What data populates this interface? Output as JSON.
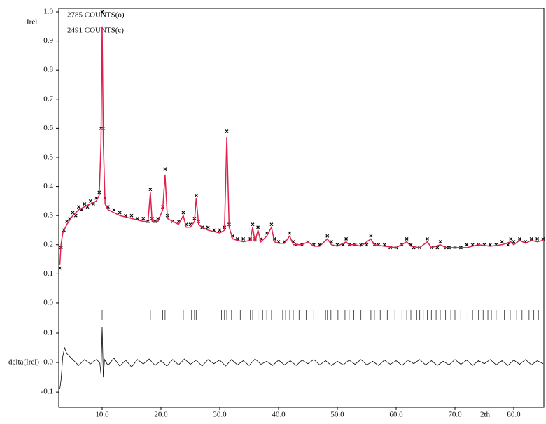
{
  "chart_data": [
    {
      "type": "rietveld",
      "ylabel": "Irel",
      "annotations": [
        "2785 COUNTS(o)",
        "2491 COUNTS(c)"
      ],
      "ylim": [
        -0.065,
        1.012
      ],
      "yticks": [
        {
          "value": 0,
          "label": "0.0"
        },
        0.1,
        0.2,
        0.3,
        0.4,
        0.5,
        0.6,
        0.7,
        0.8,
        0.9,
        {
          "value": 1,
          "label": "1.0"
        }
      ],
      "series": [
        {
          "color": "#000000",
          "marker": "x",
          "x": [
            2.8,
            3,
            3.5,
            4,
            4.5,
            5,
            5.5,
            6,
            6.5,
            7,
            7.5,
            8,
            8.5,
            9,
            9.5,
            9.8,
            10,
            10.2,
            10.5,
            11,
            12,
            13,
            14,
            15,
            16,
            17,
            17.8,
            18.2,
            18.5,
            19,
            19.5,
            20.3,
            20.7,
            21.1,
            22,
            23,
            23.8,
            24.3,
            25,
            25.7,
            26,
            26.4,
            27,
            28,
            29,
            30,
            30.8,
            31.2,
            31.6,
            32.2,
            33,
            34,
            35.2,
            35.6,
            36,
            36.5,
            37,
            38,
            38.8,
            39.3,
            40,
            41,
            41.9,
            42.5,
            43,
            44,
            45,
            46,
            47,
            48.3,
            49,
            50,
            51,
            51.5,
            52,
            53,
            54,
            55,
            55.7,
            56.3,
            57,
            58,
            59,
            60,
            61,
            61.8,
            62.5,
            63,
            64,
            65.3,
            66,
            67,
            67.5,
            68.5,
            69,
            70,
            71,
            72,
            73,
            74,
            75,
            76,
            77,
            78,
            79,
            79.5,
            80,
            81,
            82,
            83,
            84,
            85
          ],
          "values": [
            0.12,
            0.19,
            0.25,
            0.28,
            0.29,
            0.31,
            0.3,
            0.33,
            0.32,
            0.34,
            0.33,
            0.35,
            0.34,
            0.36,
            0.38,
            0.6,
            1.0,
            0.6,
            0.36,
            0.33,
            0.32,
            0.31,
            0.3,
            0.3,
            0.29,
            0.29,
            0.28,
            0.39,
            0.29,
            0.28,
            0.29,
            0.33,
            0.46,
            0.3,
            0.28,
            0.28,
            0.31,
            0.27,
            0.27,
            0.29,
            0.37,
            0.28,
            0.26,
            0.26,
            0.25,
            0.25,
            0.26,
            0.59,
            0.27,
            0.23,
            0.22,
            0.22,
            0.22,
            0.27,
            0.22,
            0.26,
            0.22,
            0.24,
            0.27,
            0.22,
            0.21,
            0.21,
            0.24,
            0.21,
            0.2,
            0.2,
            0.21,
            0.2,
            0.2,
            0.23,
            0.21,
            0.2,
            0.2,
            0.22,
            0.2,
            0.2,
            0.2,
            0.2,
            0.23,
            0.2,
            0.2,
            0.2,
            0.19,
            0.19,
            0.2,
            0.22,
            0.2,
            0.19,
            0.19,
            0.22,
            0.19,
            0.19,
            0.21,
            0.19,
            0.19,
            0.19,
            0.19,
            0.2,
            0.2,
            0.2,
            0.2,
            0.2,
            0.2,
            0.21,
            0.2,
            0.22,
            0.21,
            0.22,
            0.21,
            0.22,
            0.22,
            0.22
          ]
        },
        {
          "color": "#e0204a",
          "line": true,
          "x": [
            2.8,
            3,
            3.3,
            4,
            5,
            6,
            7,
            8,
            9,
            9.5,
            9.8,
            10,
            10.2,
            10.5,
            11,
            12,
            13,
            14,
            15,
            16,
            17,
            17.8,
            18.2,
            18.5,
            19.5,
            20.3,
            20.7,
            21.1,
            22,
            23,
            23.8,
            24.3,
            25,
            25.7,
            26,
            26.4,
            27,
            28,
            29,
            30,
            30.8,
            31.2,
            31.6,
            32.2,
            33,
            34,
            35.2,
            35.6,
            36,
            36.5,
            37,
            38,
            38.8,
            39.3,
            40,
            41,
            41.9,
            42.5,
            44,
            45,
            46,
            47,
            48.3,
            49,
            50,
            51.5,
            52,
            53,
            54,
            55.7,
            56.3,
            58,
            60,
            61.8,
            62.5,
            64,
            65.3,
            66,
            67.5,
            68.5,
            70,
            72,
            74,
            76,
            78,
            79.5,
            80,
            81,
            82,
            83,
            84,
            85
          ],
          "values": [
            0.13,
            0.2,
            0.24,
            0.27,
            0.3,
            0.32,
            0.33,
            0.34,
            0.35,
            0.37,
            0.55,
            0.95,
            0.55,
            0.34,
            0.32,
            0.31,
            0.3,
            0.295,
            0.29,
            0.285,
            0.28,
            0.28,
            0.38,
            0.28,
            0.28,
            0.32,
            0.44,
            0.29,
            0.28,
            0.27,
            0.3,
            0.26,
            0.26,
            0.28,
            0.36,
            0.27,
            0.26,
            0.25,
            0.245,
            0.24,
            0.25,
            0.57,
            0.26,
            0.22,
            0.215,
            0.21,
            0.215,
            0.26,
            0.21,
            0.25,
            0.21,
            0.23,
            0.26,
            0.21,
            0.205,
            0.205,
            0.23,
            0.2,
            0.2,
            0.21,
            0.195,
            0.195,
            0.22,
            0.2,
            0.195,
            0.21,
            0.2,
            0.2,
            0.195,
            0.22,
            0.2,
            0.195,
            0.19,
            0.21,
            0.195,
            0.19,
            0.21,
            0.19,
            0.2,
            0.19,
            0.19,
            0.19,
            0.2,
            0.195,
            0.2,
            0.21,
            0.2,
            0.215,
            0.205,
            0.215,
            0.21,
            0.215
          ]
        }
      ],
      "reflections": [
        10.0,
        18.2,
        20.3,
        20.7,
        23.8,
        25.2,
        25.7,
        26.0,
        30.3,
        30.8,
        31.2,
        32.0,
        33.5,
        35.2,
        35.6,
        36.5,
        37.3,
        38.0,
        38.8,
        40.7,
        41.2,
        41.9,
        42.5,
        43.5,
        44.7,
        46.0,
        48.0,
        48.3,
        48.9,
        50.1,
        51.3,
        52.0,
        52.8,
        54.0,
        55.7,
        56.3,
        57.3,
        58.5,
        59.8,
        61.0,
        61.8,
        62.5,
        63.5,
        64.0,
        64.6,
        65.3,
        66.0,
        66.8,
        67.5,
        68.4,
        69.3,
        70.0,
        71.0,
        72.2,
        73.0,
        74.0,
        74.8,
        75.6,
        76.2,
        77.0,
        78.4,
        79.4,
        80.5,
        81.4,
        82.6,
        83.4,
        84.2
      ],
      "reflections_color": "#555555"
    },
    {
      "type": "line",
      "ylabel": "delta(Irel)",
      "xlabel": "2th",
      "xlim": [
        2.62,
        85.12
      ],
      "xticks": [
        {
          "value": 10,
          "label": "10.0"
        },
        {
          "value": 20,
          "label": "20.0"
        },
        {
          "value": 30,
          "label": "30.0"
        },
        {
          "value": 40,
          "label": "40.0"
        },
        {
          "value": 50,
          "label": "50.0"
        },
        {
          "value": 60,
          "label": "60.0"
        },
        {
          "value": 70,
          "label": "70.0"
        },
        {
          "value": 80,
          "label": "80.0"
        }
      ],
      "ylim": [
        -0.152,
        0.138
      ],
      "yticks": [
        -0.1,
        {
          "value": 0,
          "label": "0.0"
        },
        0.1
      ],
      "series": [
        {
          "color": "#000000",
          "x": [
            2.8,
            3,
            3.3,
            3.6,
            4,
            5,
            6,
            7,
            8,
            9,
            9.6,
            9.8,
            10,
            10.2,
            10.4,
            11,
            12,
            13,
            14,
            15,
            16,
            17,
            18,
            19,
            20,
            21,
            22,
            23,
            24,
            25,
            26,
            27,
            28,
            29,
            30,
            31,
            32,
            33,
            34,
            35,
            36,
            37,
            38,
            39,
            40,
            41,
            42,
            43,
            44,
            45,
            46,
            47,
            48,
            49,
            50,
            51,
            52,
            53,
            54,
            55,
            56,
            57,
            58,
            59,
            60,
            61,
            62,
            63,
            64,
            65,
            66,
            67,
            68,
            69,
            70,
            71,
            72,
            73,
            74,
            75,
            76,
            77,
            78,
            79,
            80,
            81,
            82,
            83,
            84,
            85
          ],
          "values": [
            -0.09,
            -0.06,
            0.02,
            0.05,
            0.03,
            0.01,
            -0.01,
            0.01,
            -0.005,
            0.01,
            0.0,
            -0.04,
            0.12,
            -0.05,
            0.01,
            -0.01,
            0.015,
            -0.012,
            0.008,
            -0.015,
            0.01,
            -0.005,
            0.012,
            -0.01,
            0.006,
            -0.012,
            0.01,
            -0.008,
            0.012,
            -0.006,
            0.008,
            -0.012,
            0.01,
            -0.004,
            0.008,
            -0.012,
            0.01,
            -0.008,
            0.006,
            -0.01,
            0.012,
            -0.006,
            0.004,
            -0.01,
            0.008,
            -0.008,
            0.006,
            -0.01,
            0.008,
            -0.004,
            0.01,
            -0.008,
            0.006,
            -0.01,
            0.004,
            -0.008,
            0.008,
            -0.006,
            0.01,
            -0.008,
            0.004,
            -0.01,
            0.008,
            -0.006,
            0.006,
            -0.01,
            0.008,
            -0.004,
            0.01,
            -0.008,
            0.006,
            -0.01,
            0.004,
            -0.008,
            0.01,
            -0.006,
            0.008,
            -0.01,
            0.006,
            -0.004,
            0.01,
            -0.008,
            0.006,
            -0.01,
            0.008,
            -0.006,
            0.01,
            -0.008,
            0.006,
            -0.004
          ]
        }
      ]
    }
  ]
}
